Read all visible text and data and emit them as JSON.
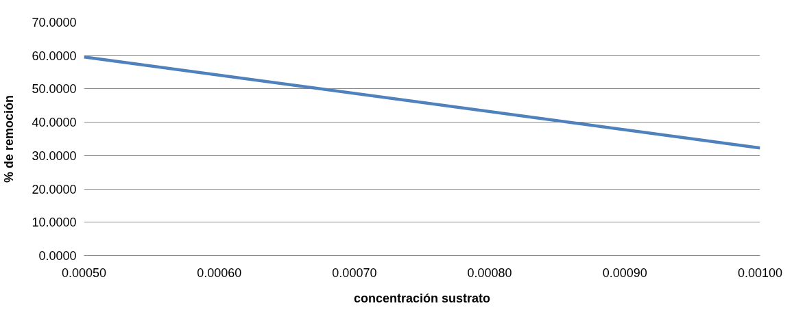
{
  "chart_data": {
    "type": "line",
    "xlabel": "concentración sustrato",
    "ylabel": "% de remoción",
    "x": [
      0.0005,
      0.001
    ],
    "series": [
      {
        "color": "#4f81bd",
        "values": [
          59.6,
          32.3
        ]
      }
    ],
    "xlim": [
      0.0005,
      0.001
    ],
    "xticks": [
      {
        "value": 0.0005,
        "label": "0.00050"
      },
      {
        "value": 0.0006,
        "label": "0.00060"
      },
      {
        "value": 0.0007,
        "label": "0.00070"
      },
      {
        "value": 0.0008,
        "label": "0.00080"
      },
      {
        "value": 0.0009,
        "label": "0.00090"
      },
      {
        "value": 0.001,
        "label": "0.00100"
      }
    ],
    "ylim": [
      0,
      70
    ],
    "yticks": [
      {
        "value": 0,
        "label": "0.0000"
      },
      {
        "value": 10,
        "label": "10.0000"
      },
      {
        "value": 20,
        "label": "20.0000"
      },
      {
        "value": 30,
        "label": "30.0000"
      },
      {
        "value": 40,
        "label": "40.0000"
      },
      {
        "value": 50,
        "label": "50.0000"
      },
      {
        "value": 60,
        "label": "60.0000"
      },
      {
        "value": 70,
        "label": "70.0000"
      }
    ],
    "grid": "y",
    "marker": "none",
    "line_style": "solid"
  }
}
